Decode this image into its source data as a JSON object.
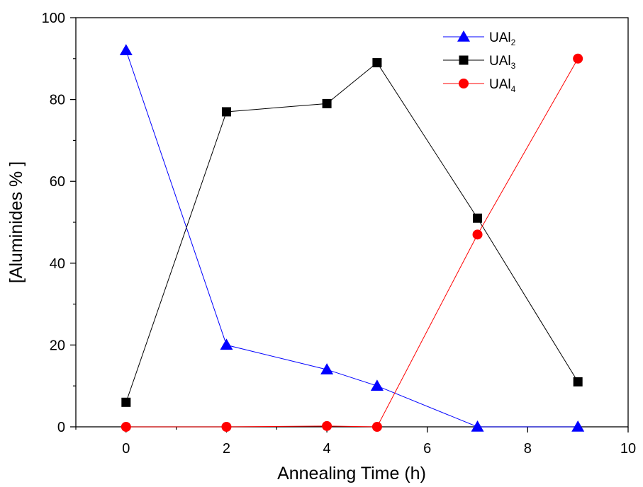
{
  "chart_data": {
    "type": "line",
    "xlabel": "Annealing Time (h)",
    "ylabel": "[Aluminides % ]",
    "xlim": [
      -1,
      10
    ],
    "ylim": [
      0,
      100
    ],
    "xticks": [
      0,
      2,
      4,
      6,
      8,
      10
    ],
    "yticks": [
      0,
      20,
      40,
      60,
      80,
      100
    ],
    "grid": false,
    "legend_position": "top-right",
    "series": [
      {
        "name": "UAl2",
        "label_base": "UAl",
        "label_sub": "2",
        "color": "#0000ff",
        "marker": "triangle",
        "x": [
          0,
          2,
          4,
          5,
          7,
          9
        ],
        "y": [
          92,
          20,
          14,
          10,
          0,
          0
        ]
      },
      {
        "name": "UAl3",
        "label_base": "UAl",
        "label_sub": "3",
        "color": "#000000",
        "marker": "square",
        "x": [
          0,
          2,
          4,
          5,
          7,
          9
        ],
        "y": [
          6,
          77,
          79,
          89,
          51,
          11
        ]
      },
      {
        "name": "UAl4",
        "label_base": "UAl",
        "label_sub": "4",
        "color": "#ff0000",
        "marker": "circle",
        "x": [
          0,
          2,
          4,
          5,
          7,
          9
        ],
        "y": [
          0,
          0,
          0.2,
          0,
          47,
          90
        ]
      }
    ]
  }
}
